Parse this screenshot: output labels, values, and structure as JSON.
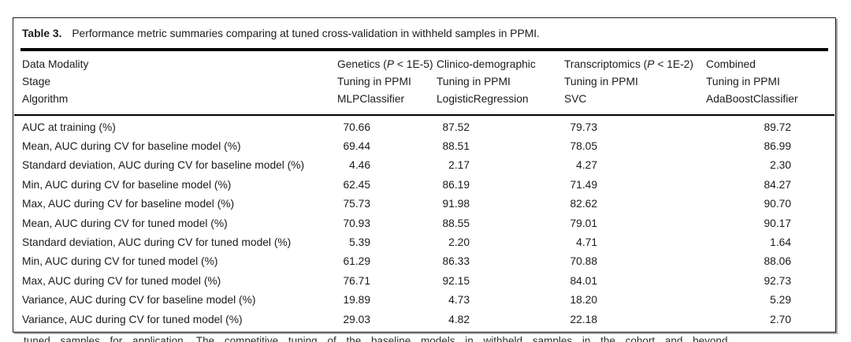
{
  "caption": {
    "label": "Table 3.",
    "text": "Performance metric summaries comparing at tuned cross-validation in withheld samples in PPMI."
  },
  "header": {
    "row_labels": [
      "Data Modality",
      "Stage",
      "Algorithm"
    ],
    "columns": [
      {
        "modality": {
          "pre": "Genetics (",
          "italic": "P",
          "post": " < 1E-5)"
        },
        "stage": "Tuning in PPMI",
        "algorithm": "MLPClassifier"
      },
      {
        "modality": {
          "pre": "Clinico-demographic",
          "italic": "",
          "post": ""
        },
        "stage": "Tuning in PPMI",
        "algorithm": "LogisticRegression"
      },
      {
        "modality": {
          "pre": "Transcriptomics (",
          "italic": "P",
          "post": " < 1E-2)"
        },
        "stage": "Tuning in PPMI",
        "algorithm": "SVC"
      },
      {
        "modality": {
          "pre": "Combined",
          "italic": "",
          "post": ""
        },
        "stage": "Tuning in PPMI",
        "algorithm": "AdaBoostClassifier"
      }
    ]
  },
  "rows": [
    {
      "label": "AUC at training (%)",
      "values": [
        "70.66",
        "87.52",
        "79.73",
        "89.72"
      ]
    },
    {
      "label": "Mean, AUC during CV for baseline model (%)",
      "values": [
        "69.44",
        "88.51",
        "78.05",
        "86.99"
      ]
    },
    {
      "label": "Standard deviation, AUC during CV for baseline model (%)",
      "values": [
        "4.46",
        "2.17",
        "4.27",
        "2.30"
      ]
    },
    {
      "label": "Min, AUC during CV for baseline model (%)",
      "values": [
        "62.45",
        "86.19",
        "71.49",
        "84.27"
      ]
    },
    {
      "label": "Max, AUC during CV for baseline model (%)",
      "values": [
        "75.73",
        "91.98",
        "82.62",
        "90.70"
      ]
    },
    {
      "label": "Mean, AUC during CV for tuned model (%)",
      "values": [
        "70.93",
        "88.55",
        "79.01",
        "90.17"
      ]
    },
    {
      "label": "Standard deviation, AUC during CV for tuned model (%)",
      "values": [
        "5.39",
        "2.20",
        "4.71",
        "1.64"
      ]
    },
    {
      "label": "Min, AUC during CV for tuned model (%)",
      "values": [
        "61.29",
        "86.33",
        "70.88",
        "88.06"
      ]
    },
    {
      "label": "Max, AUC during CV for tuned model (%)",
      "values": [
        "76.71",
        "92.15",
        "84.01",
        "92.73"
      ]
    },
    {
      "label": "Variance, AUC during CV for baseline model (%)",
      "values": [
        "19.89",
        "4.73",
        "18.20",
        "5.29"
      ]
    },
    {
      "label": "Variance, AUC during CV for tuned model (%)",
      "values": [
        "29.03",
        "4.82",
        "22.18",
        "2.70"
      ]
    }
  ],
  "footer_fragment": "tuned samples for application. The competitive tuning of the baseline models in withheld samples in the cohort and beyond"
}
